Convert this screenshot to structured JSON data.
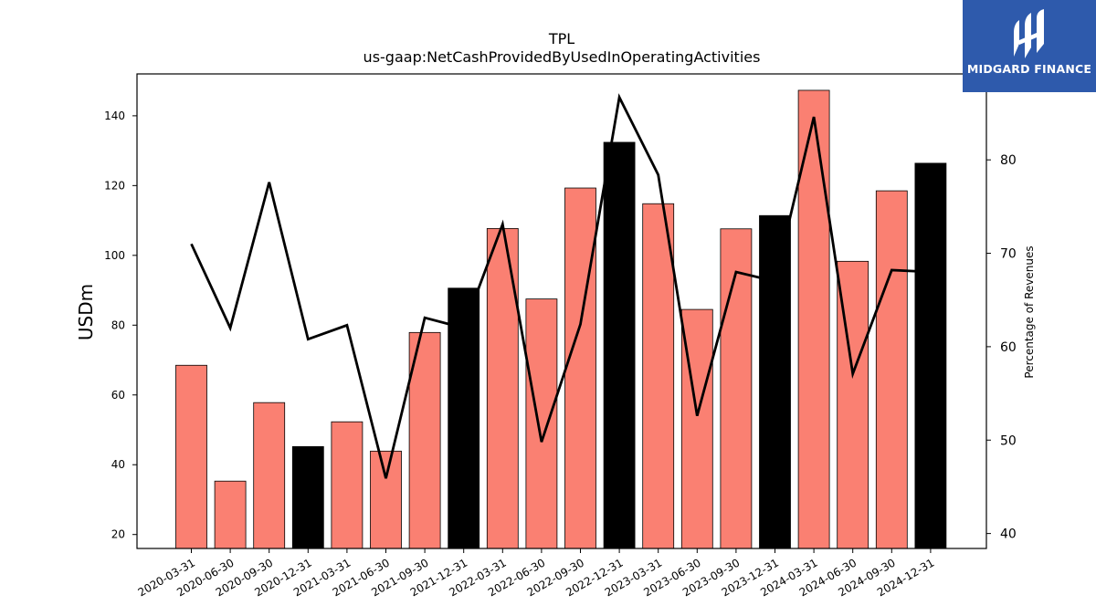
{
  "chart_data": {
    "type": "bar",
    "title": "TPL",
    "subtitle": "us-gaap:NetCashProvidedByUsedInOperatingActivities",
    "ylabel": "USDm",
    "y2label": "Percentage of Revenues",
    "ylim": [
      16,
      152
    ],
    "y2lim": [
      38.4,
      89.2
    ],
    "yticks": [
      20,
      40,
      60,
      80,
      100,
      120,
      140
    ],
    "y2ticks": [
      40,
      50,
      60,
      70,
      80
    ],
    "categories": [
      "2020-03-31",
      "2020-06-30",
      "2020-09-30",
      "2020-12-31",
      "2021-03-31",
      "2021-06-30",
      "2021-09-30",
      "2021-12-31",
      "2022-03-31",
      "2022-06-30",
      "2022-09-30",
      "2022-12-31",
      "2023-03-31",
      "2023-06-30",
      "2023-09-30",
      "2023-12-31",
      "2024-03-31",
      "2024-06-30",
      "2024-09-30",
      "2024-12-31"
    ],
    "series": [
      {
        "kind": "bar",
        "values": [
          68.5,
          35.3,
          57.8,
          45.2,
          52.3,
          43.9,
          77.9,
          90.6,
          107.7,
          87.5,
          119.3,
          132.4,
          114.8,
          84.5,
          107.6,
          111.4,
          147.3,
          98.3,
          118.5,
          126.4
        ],
        "quarter_color": "#fa8072",
        "year_end_color": "#000000",
        "year_end_flags": [
          false,
          false,
          false,
          true,
          false,
          false,
          false,
          true,
          false,
          false,
          false,
          true,
          false,
          false,
          false,
          true,
          false,
          false,
          false,
          true
        ]
      },
      {
        "kind": "line",
        "axis": "right",
        "color": "#000000",
        "values": [
          71.0,
          62.0,
          77.6,
          60.8,
          62.3,
          45.9,
          63.1,
          62.0,
          73.1,
          49.8,
          62.4,
          86.7,
          78.4,
          52.6,
          68.0,
          67.0,
          84.6,
          57.1,
          68.2,
          68.0
        ]
      }
    ],
    "legend": "none",
    "grid": false
  },
  "logo": {
    "text": "MIDGARD FINANCE",
    "bg_color": "#2e5aac"
  }
}
